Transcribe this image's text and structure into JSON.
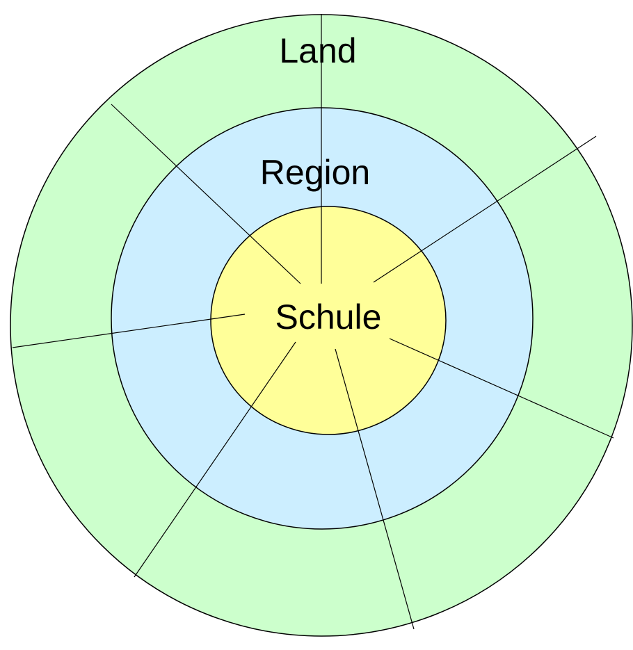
{
  "rings": [
    {
      "label": "Land"
    },
    {
      "label": "Region"
    },
    {
      "label": "Schule"
    }
  ]
}
